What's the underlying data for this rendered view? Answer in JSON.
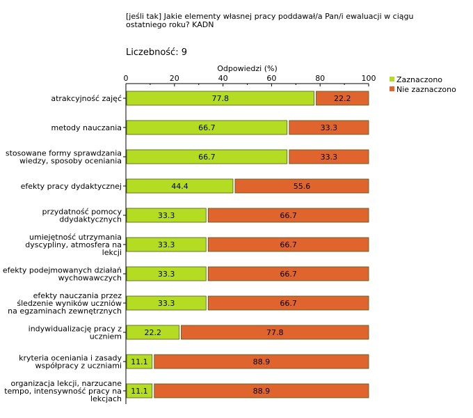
{
  "title": "[jeśli tak]  Jakie elementy własnej pracy poddawał/a Pan/i ewaluacji w ciągu ostatniego roku? KADN",
  "count_label": "Liczebność: 9",
  "chart_data": {
    "type": "bar",
    "orientation": "horizontal",
    "stacked": true,
    "xlabel": "Odpowiedzi (%)",
    "xlim": [
      0,
      100
    ],
    "xticks": [
      0,
      20,
      40,
      60,
      80,
      100
    ],
    "legend_position": "top-right",
    "categories": [
      [
        "atrakcyjność zajęć"
      ],
      [
        "metody nauczania"
      ],
      [
        "stosowane formy sprawdzania",
        "wiedzy, sposoby oceniania"
      ],
      [
        "efekty pracy dydaktycznej"
      ],
      [
        "przydatność pomocy",
        "ddydaktycznych"
      ],
      [
        "umiejętność utrzymania",
        "dyscypliny, atmosfera na",
        "lekcji"
      ],
      [
        "efekty podejmowanych działań",
        "wychowawczych"
      ],
      [
        "efekty nauczania przez",
        "śledzenie wyników uczniów",
        "na egzaminach zewnętrznych"
      ],
      [
        "indywidualizację pracy z",
        "uczniem"
      ],
      [
        "kryteria oceniania  i zasady",
        "współpracy z uczniami"
      ],
      [
        "organizacja lekcji, narzucane",
        "tempo, intensywność pracy na",
        "lekcjach"
      ]
    ],
    "series": [
      {
        "name": "Zaznaczono",
        "color": "#b4dc23",
        "values": [
          77.8,
          66.7,
          66.7,
          44.4,
          33.3,
          33.3,
          33.3,
          33.3,
          22.2,
          11.1,
          11.1
        ]
      },
      {
        "name": "Nie zaznaczono",
        "color": "#e0642e",
        "values": [
          22.2,
          33.3,
          33.3,
          55.6,
          66.7,
          66.7,
          66.7,
          66.7,
          77.8,
          88.9,
          88.9
        ]
      }
    ]
  }
}
